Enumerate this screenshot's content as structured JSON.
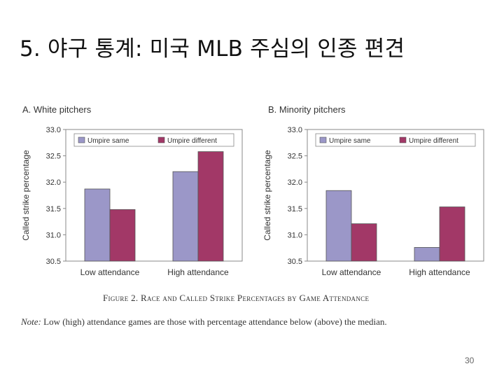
{
  "slide": {
    "title": "5. 야구 통계: 미국 MLB 주심의 인종 편견",
    "page_number": "30"
  },
  "figure": {
    "caption": "Figure 2. Race and Called Strike Percentages by Game Attendance",
    "note_label": "Note:",
    "note_text": " Low (high) attendance games are those with percentage attendance below (above) the median."
  },
  "colors": {
    "series1": "#9b97c8",
    "series2": "#a23867"
  },
  "chart_data": [
    {
      "type": "bar",
      "title": "A. White pitchers",
      "ylabel": "Called strike percentage",
      "xlabel": "",
      "categories": [
        "Low attendance",
        "High attendance"
      ],
      "series": [
        {
          "name": "Umpire same",
          "values": [
            31.87,
            32.2
          ]
        },
        {
          "name": "Umpire different",
          "values": [
            31.48,
            32.58
          ]
        }
      ],
      "ylim": [
        30.5,
        33.0
      ],
      "yticks": [
        "30.5",
        "31.0",
        "31.5",
        "32.0",
        "32.5",
        "33.0"
      ],
      "legend": "top"
    },
    {
      "type": "bar",
      "title": "B. Minority pitchers",
      "ylabel": "Called strike percentage",
      "xlabel": "",
      "categories": [
        "Low attendance",
        "High attendance"
      ],
      "series": [
        {
          "name": "Umpire same",
          "values": [
            31.84,
            30.76
          ]
        },
        {
          "name": "Umpire different",
          "values": [
            31.21,
            31.53
          ]
        }
      ],
      "ylim": [
        30.5,
        33.0
      ],
      "yticks": [
        "30.5",
        "31.0",
        "31.5",
        "32.0",
        "32.5",
        "33.0"
      ],
      "legend": "top"
    }
  ]
}
